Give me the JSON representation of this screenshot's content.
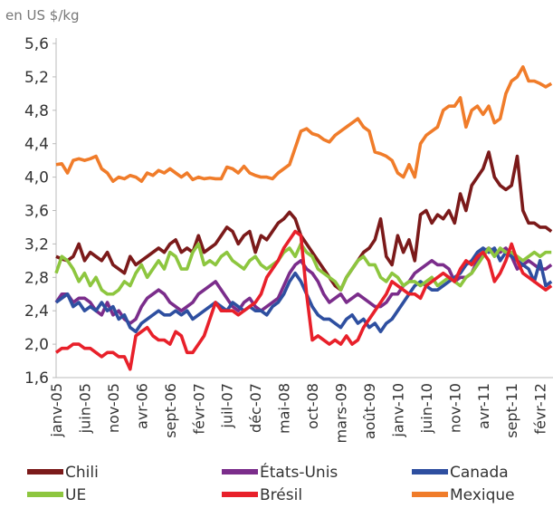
{
  "chart_data": {
    "type": "line",
    "y_label": "en US $/kg",
    "categories": [
      "janv-05",
      null,
      null,
      null,
      null,
      "juin-05",
      null,
      null,
      null,
      null,
      "nov-05",
      null,
      null,
      null,
      null,
      "avr-06",
      null,
      null,
      null,
      null,
      "sept-06",
      null,
      null,
      null,
      null,
      "févr-07",
      null,
      null,
      null,
      null,
      "juil-07",
      null,
      null,
      null,
      null,
      "déc-07",
      null,
      null,
      null,
      null,
      "mai-08",
      null,
      null,
      null,
      null,
      "oct-08",
      null,
      null,
      null,
      null,
      "mars-09",
      null,
      null,
      null,
      null,
      "août-09",
      null,
      null,
      null,
      null,
      "janv-10",
      null,
      null,
      null,
      null,
      "juin-10",
      null,
      null,
      null,
      null,
      "nov-10",
      null,
      null,
      null,
      null,
      "avr-11",
      null,
      null,
      null,
      null,
      "sept-11",
      null,
      null,
      null,
      null,
      "févr-12",
      null,
      null
    ],
    "ylim": [
      1.6,
      5.6
    ],
    "yticks": [
      {
        "value": 1.6,
        "label": "1,6"
      },
      {
        "value": 2.0,
        "label": "2,0"
      },
      {
        "value": 2.4,
        "label": "2,4"
      },
      {
        "value": 2.8,
        "label": "2,8"
      },
      {
        "value": 3.2,
        "label": "3,2"
      },
      {
        "value": 3.6,
        "label": "3,6"
      },
      {
        "value": 4.0,
        "label": "4,0"
      },
      {
        "value": 4.4,
        "label": "4,4"
      },
      {
        "value": 4.8,
        "label": "4,8"
      },
      {
        "value": 5.2,
        "label": "5,2"
      },
      {
        "value": 5.6,
        "label": "5,6"
      }
    ],
    "grid": false,
    "legend": "bottom",
    "series": [
      {
        "name": "Chili",
        "color": "#7b1a1a",
        "values": [
          3.05,
          3.02,
          3.0,
          3.05,
          3.2,
          3.0,
          3.1,
          3.05,
          3.0,
          3.1,
          2.95,
          2.9,
          2.85,
          3.05,
          2.95,
          3.0,
          3.05,
          3.1,
          3.15,
          3.1,
          3.2,
          3.25,
          3.1,
          3.15,
          3.1,
          3.3,
          3.1,
          3.15,
          3.2,
          3.3,
          3.4,
          3.35,
          3.2,
          3.3,
          3.35,
          3.1,
          3.3,
          3.25,
          3.35,
          3.45,
          3.5,
          3.58,
          3.5,
          3.3,
          3.2,
          3.1,
          3.0,
          2.9,
          2.8,
          2.7,
          2.65,
          2.8,
          2.9,
          3.0,
          3.1,
          3.15,
          3.25,
          3.5,
          3.05,
          2.95,
          3.3,
          3.1,
          3.25,
          3.0,
          3.55,
          3.6,
          3.45,
          3.55,
          3.5,
          3.6,
          3.45,
          3.8,
          3.6,
          3.9,
          4.0,
          4.1,
          4.3,
          4.0,
          3.9,
          3.85,
          3.9,
          4.25,
          3.6,
          3.45,
          3.45,
          3.4,
          3.4,
          3.35
        ]
      },
      {
        "name": "États-Unis",
        "color": "#7b2d8b",
        "values": [
          2.5,
          2.6,
          2.6,
          2.5,
          2.55,
          2.55,
          2.5,
          2.4,
          2.35,
          2.5,
          2.35,
          2.4,
          2.3,
          2.25,
          2.3,
          2.45,
          2.55,
          2.6,
          2.65,
          2.6,
          2.5,
          2.45,
          2.4,
          2.45,
          2.5,
          2.6,
          2.65,
          2.7,
          2.75,
          2.65,
          2.55,
          2.45,
          2.4,
          2.5,
          2.55,
          2.45,
          2.4,
          2.45,
          2.5,
          2.55,
          2.7,
          2.85,
          2.95,
          3.0,
          2.9,
          2.85,
          2.75,
          2.6,
          2.5,
          2.55,
          2.6,
          2.5,
          2.55,
          2.6,
          2.55,
          2.5,
          2.45,
          2.45,
          2.5,
          2.6,
          2.6,
          2.7,
          2.75,
          2.85,
          2.9,
          2.95,
          3.0,
          2.95,
          2.95,
          2.9,
          2.75,
          2.8,
          2.8,
          2.85,
          3.0,
          3.1,
          3.15,
          3.1,
          3.1,
          3.15,
          3.05,
          2.9,
          2.95,
          3.0,
          2.95,
          2.9,
          2.9,
          2.95
        ]
      },
      {
        "name": "Canada",
        "color": "#2e4fa0",
        "values": [
          2.5,
          2.55,
          2.6,
          2.45,
          2.5,
          2.4,
          2.45,
          2.4,
          2.5,
          2.4,
          2.45,
          2.3,
          2.35,
          2.2,
          2.15,
          2.25,
          2.3,
          2.35,
          2.4,
          2.35,
          2.35,
          2.4,
          2.35,
          2.4,
          2.3,
          2.35,
          2.4,
          2.45,
          2.5,
          2.45,
          2.4,
          2.5,
          2.45,
          2.4,
          2.45,
          2.4,
          2.4,
          2.35,
          2.45,
          2.5,
          2.6,
          2.75,
          2.85,
          2.75,
          2.6,
          2.45,
          2.35,
          2.3,
          2.3,
          2.25,
          2.2,
          2.3,
          2.35,
          2.25,
          2.3,
          2.2,
          2.25,
          2.15,
          2.25,
          2.3,
          2.4,
          2.5,
          2.6,
          2.7,
          2.75,
          2.7,
          2.65,
          2.65,
          2.7,
          2.75,
          2.8,
          2.85,
          2.95,
          3.0,
          3.1,
          3.15,
          3.1,
          3.15,
          3.0,
          3.1,
          3.05,
          3.0,
          2.95,
          2.9,
          2.75,
          3.0,
          2.7,
          2.75
        ]
      },
      {
        "name": "UE",
        "color": "#8dc63f",
        "values": [
          2.85,
          3.05,
          3.0,
          2.9,
          2.75,
          2.85,
          2.7,
          2.8,
          2.65,
          2.6,
          2.6,
          2.65,
          2.75,
          2.7,
          2.85,
          2.95,
          2.8,
          2.9,
          3.0,
          2.9,
          3.1,
          3.05,
          2.9,
          2.9,
          3.1,
          3.2,
          2.95,
          3.0,
          2.95,
          3.05,
          3.1,
          3.0,
          2.95,
          2.9,
          3.0,
          3.05,
          2.95,
          2.9,
          2.95,
          3.0,
          3.1,
          3.15,
          3.05,
          3.2,
          3.1,
          3.05,
          2.9,
          2.85,
          2.8,
          2.75,
          2.65,
          2.8,
          2.9,
          3.0,
          3.05,
          2.95,
          2.95,
          2.8,
          2.75,
          2.85,
          2.8,
          2.7,
          2.75,
          2.75,
          2.7,
          2.75,
          2.8,
          2.7,
          2.75,
          2.8,
          2.75,
          2.7,
          2.8,
          2.85,
          2.95,
          3.05,
          3.15,
          3.05,
          3.15,
          3.1,
          3.1,
          3.05,
          3.0,
          3.05,
          3.1,
          3.05,
          3.1,
          3.1
        ]
      },
      {
        "name": "Brésil",
        "color": "#e8202a",
        "values": [
          1.9,
          1.95,
          1.95,
          2.0,
          2.0,
          1.95,
          1.95,
          1.9,
          1.85,
          1.9,
          1.9,
          1.85,
          1.85,
          1.7,
          2.1,
          2.15,
          2.2,
          2.1,
          2.05,
          2.05,
          2.0,
          2.15,
          2.1,
          1.9,
          1.9,
          2.0,
          2.1,
          2.3,
          2.5,
          2.4,
          2.4,
          2.4,
          2.35,
          2.4,
          2.45,
          2.5,
          2.6,
          2.8,
          2.9,
          3.0,
          3.15,
          3.25,
          3.35,
          3.3,
          2.6,
          2.05,
          2.1,
          2.05,
          2.0,
          2.05,
          2.0,
          2.1,
          2.0,
          2.05,
          2.2,
          2.3,
          2.4,
          2.5,
          2.6,
          2.75,
          2.7,
          2.65,
          2.6,
          2.6,
          2.55,
          2.7,
          2.75,
          2.8,
          2.85,
          2.8,
          2.75,
          2.9,
          3.0,
          2.95,
          3.05,
          3.1,
          3.0,
          2.75,
          2.85,
          3.0,
          3.2,
          3.0,
          2.85,
          2.8,
          2.75,
          2.7,
          2.65,
          2.7
        ]
      },
      {
        "name": "Mexique",
        "color": "#f07c2a",
        "values": [
          4.15,
          4.16,
          4.05,
          4.2,
          4.22,
          4.2,
          4.22,
          4.25,
          4.1,
          4.05,
          3.95,
          4.0,
          3.98,
          4.02,
          4.0,
          3.95,
          4.05,
          4.02,
          4.08,
          4.05,
          4.1,
          4.05,
          4.0,
          4.05,
          3.97,
          4.0,
          3.98,
          3.99,
          3.98,
          3.98,
          4.12,
          4.1,
          4.05,
          4.13,
          4.05,
          4.02,
          4.0,
          4.0,
          3.98,
          4.05,
          4.1,
          4.15,
          4.35,
          4.55,
          4.58,
          4.52,
          4.5,
          4.45,
          4.42,
          4.5,
          4.55,
          4.6,
          4.65,
          4.7,
          4.6,
          4.55,
          4.3,
          4.28,
          4.25,
          4.2,
          4.05,
          4.0,
          4.15,
          4.0,
          4.4,
          4.5,
          4.55,
          4.6,
          4.8,
          4.85,
          4.85,
          4.95,
          4.6,
          4.8,
          4.85,
          4.75,
          4.85,
          4.65,
          4.7,
          5.0,
          5.15,
          5.2,
          5.32,
          5.15,
          5.15,
          5.12,
          5.08,
          5.12
        ]
      }
    ]
  }
}
